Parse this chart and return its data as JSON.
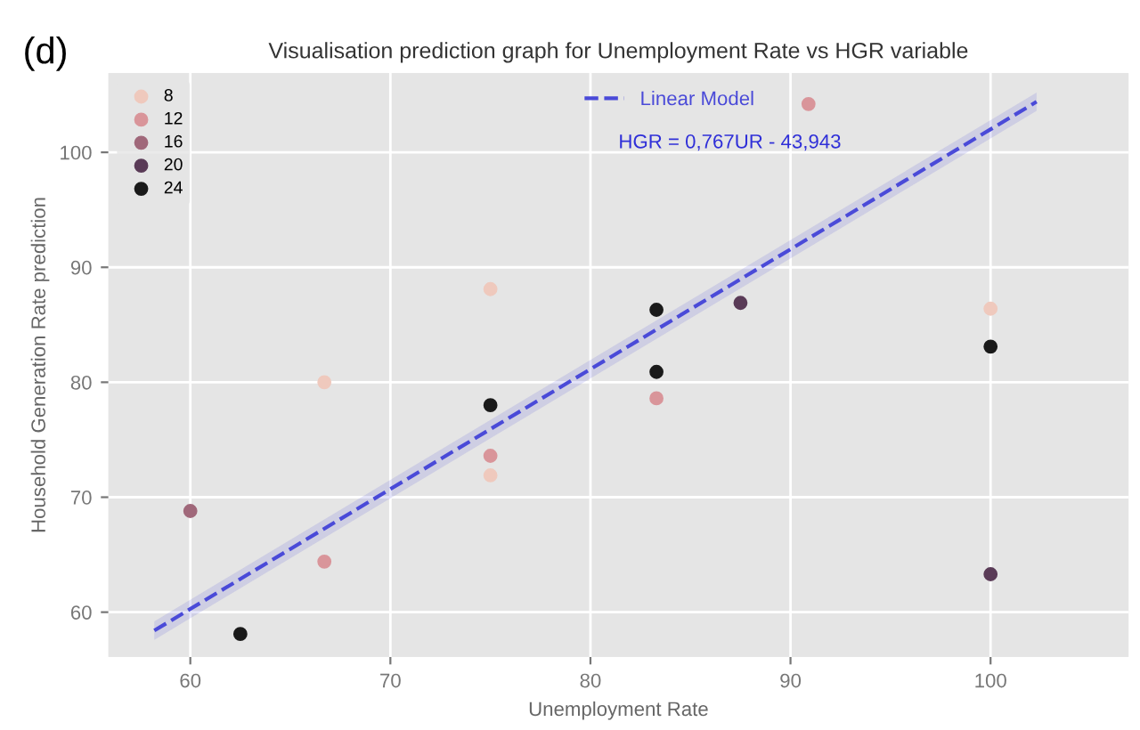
{
  "chart_data": {
    "type": "scatter",
    "title": "Visualisation prediction graph for Unemployment Rate vs HGR variable",
    "xlabel": "Unemployment Rate",
    "ylabel": "Household Generation Rate prediction",
    "annotations": [
      "(d)",
      "HGR = 0,767UR - 43,943"
    ],
    "series": [
      {
        "name": "8",
        "color": "#efc9bd",
        "x": [
          66.7,
          75,
          75,
          100
        ],
        "values": [
          80,
          71.9,
          88.1,
          86.4
        ]
      },
      {
        "name": "12",
        "color": "#d9959a",
        "x": [
          66.7,
          75,
          83.3,
          90.9
        ],
        "values": [
          64.4,
          73.6,
          78.6,
          104.2
        ]
      },
      {
        "name": "16",
        "color": "#a0687a",
        "x": [
          60
        ],
        "values": [
          68.8
        ]
      },
      {
        "name": "20",
        "color": "#5a3b57",
        "x": [
          87.5,
          100
        ],
        "values": [
          86.9,
          63.3
        ]
      },
      {
        "name": "24",
        "color": "#1a1a1a",
        "x": [
          62.5,
          75,
          83.3,
          83.3,
          100
        ],
        "values": [
          58.1,
          78,
          86.3,
          80.9,
          83.1
        ]
      },
      {
        "name": "Linear Model",
        "type": "line",
        "color": "#4a4ad8",
        "line_style": "dashed",
        "marker": "none",
        "x": [
          58.2,
          102.3
        ],
        "values": [
          58.4,
          104.4
        ],
        "lower": [
          57.6,
          103.6
        ],
        "upper": [
          59.2,
          105.2
        ]
      }
    ],
    "xlim": [
      55.9,
      106.9
    ],
    "ylim": [
      56.1,
      106.9
    ],
    "xticks": [
      60,
      70,
      80,
      90,
      100
    ],
    "yticks": [
      60,
      70,
      80,
      90,
      100
    ],
    "grid": true,
    "legend": "top left",
    "marker": "circle"
  }
}
